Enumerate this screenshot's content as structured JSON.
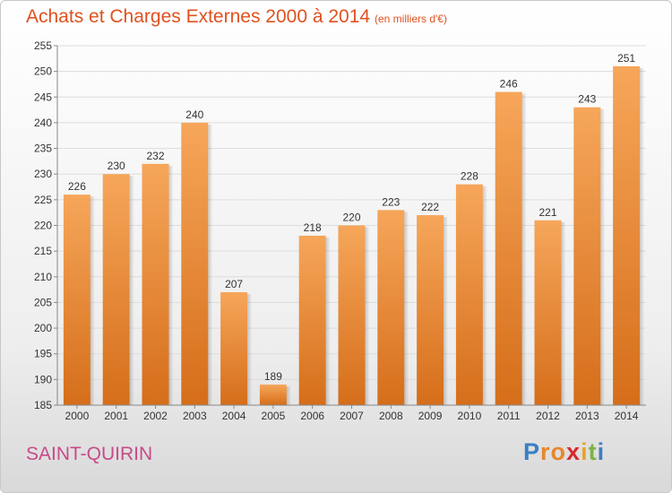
{
  "title": "Achats et Charges Externes 2000 à 2014",
  "subtitle": "(en milliers d'€)",
  "commune": "SAINT-QUIRIN",
  "brand": {
    "text": "Proxiti",
    "letters": [
      "P",
      "r",
      "o",
      "x",
      "i",
      "t",
      "i"
    ],
    "letter_colors": [
      "#3b7fc4",
      "#e8862b",
      "#e8862b",
      "#d6292e",
      "#e8a52a",
      "#7cb342",
      "#3b7fc4"
    ]
  },
  "colors": {
    "bar_light": "#f6a65a",
    "bar_dark": "#d56e1a",
    "title": "#e0511f",
    "commune": "#c84a8a",
    "grid": "#dddddd"
  },
  "chart_data": {
    "type": "bar",
    "title": "Achats et Charges Externes 2000 à 2014",
    "subtitle": "(en milliers d'€)",
    "categories": [
      "2000",
      "2001",
      "2002",
      "2003",
      "2004",
      "2005",
      "2006",
      "2007",
      "2008",
      "2009",
      "2010",
      "2011",
      "2012",
      "2013",
      "2014"
    ],
    "values": [
      226,
      230,
      232,
      240,
      207,
      189,
      218,
      220,
      223,
      222,
      228,
      246,
      221,
      243,
      251
    ],
    "ylim": [
      185,
      255
    ],
    "yticks": [
      185,
      190,
      195,
      200,
      205,
      210,
      215,
      220,
      225,
      230,
      235,
      240,
      245,
      250,
      255
    ],
    "grid": true,
    "data_labels": true
  }
}
